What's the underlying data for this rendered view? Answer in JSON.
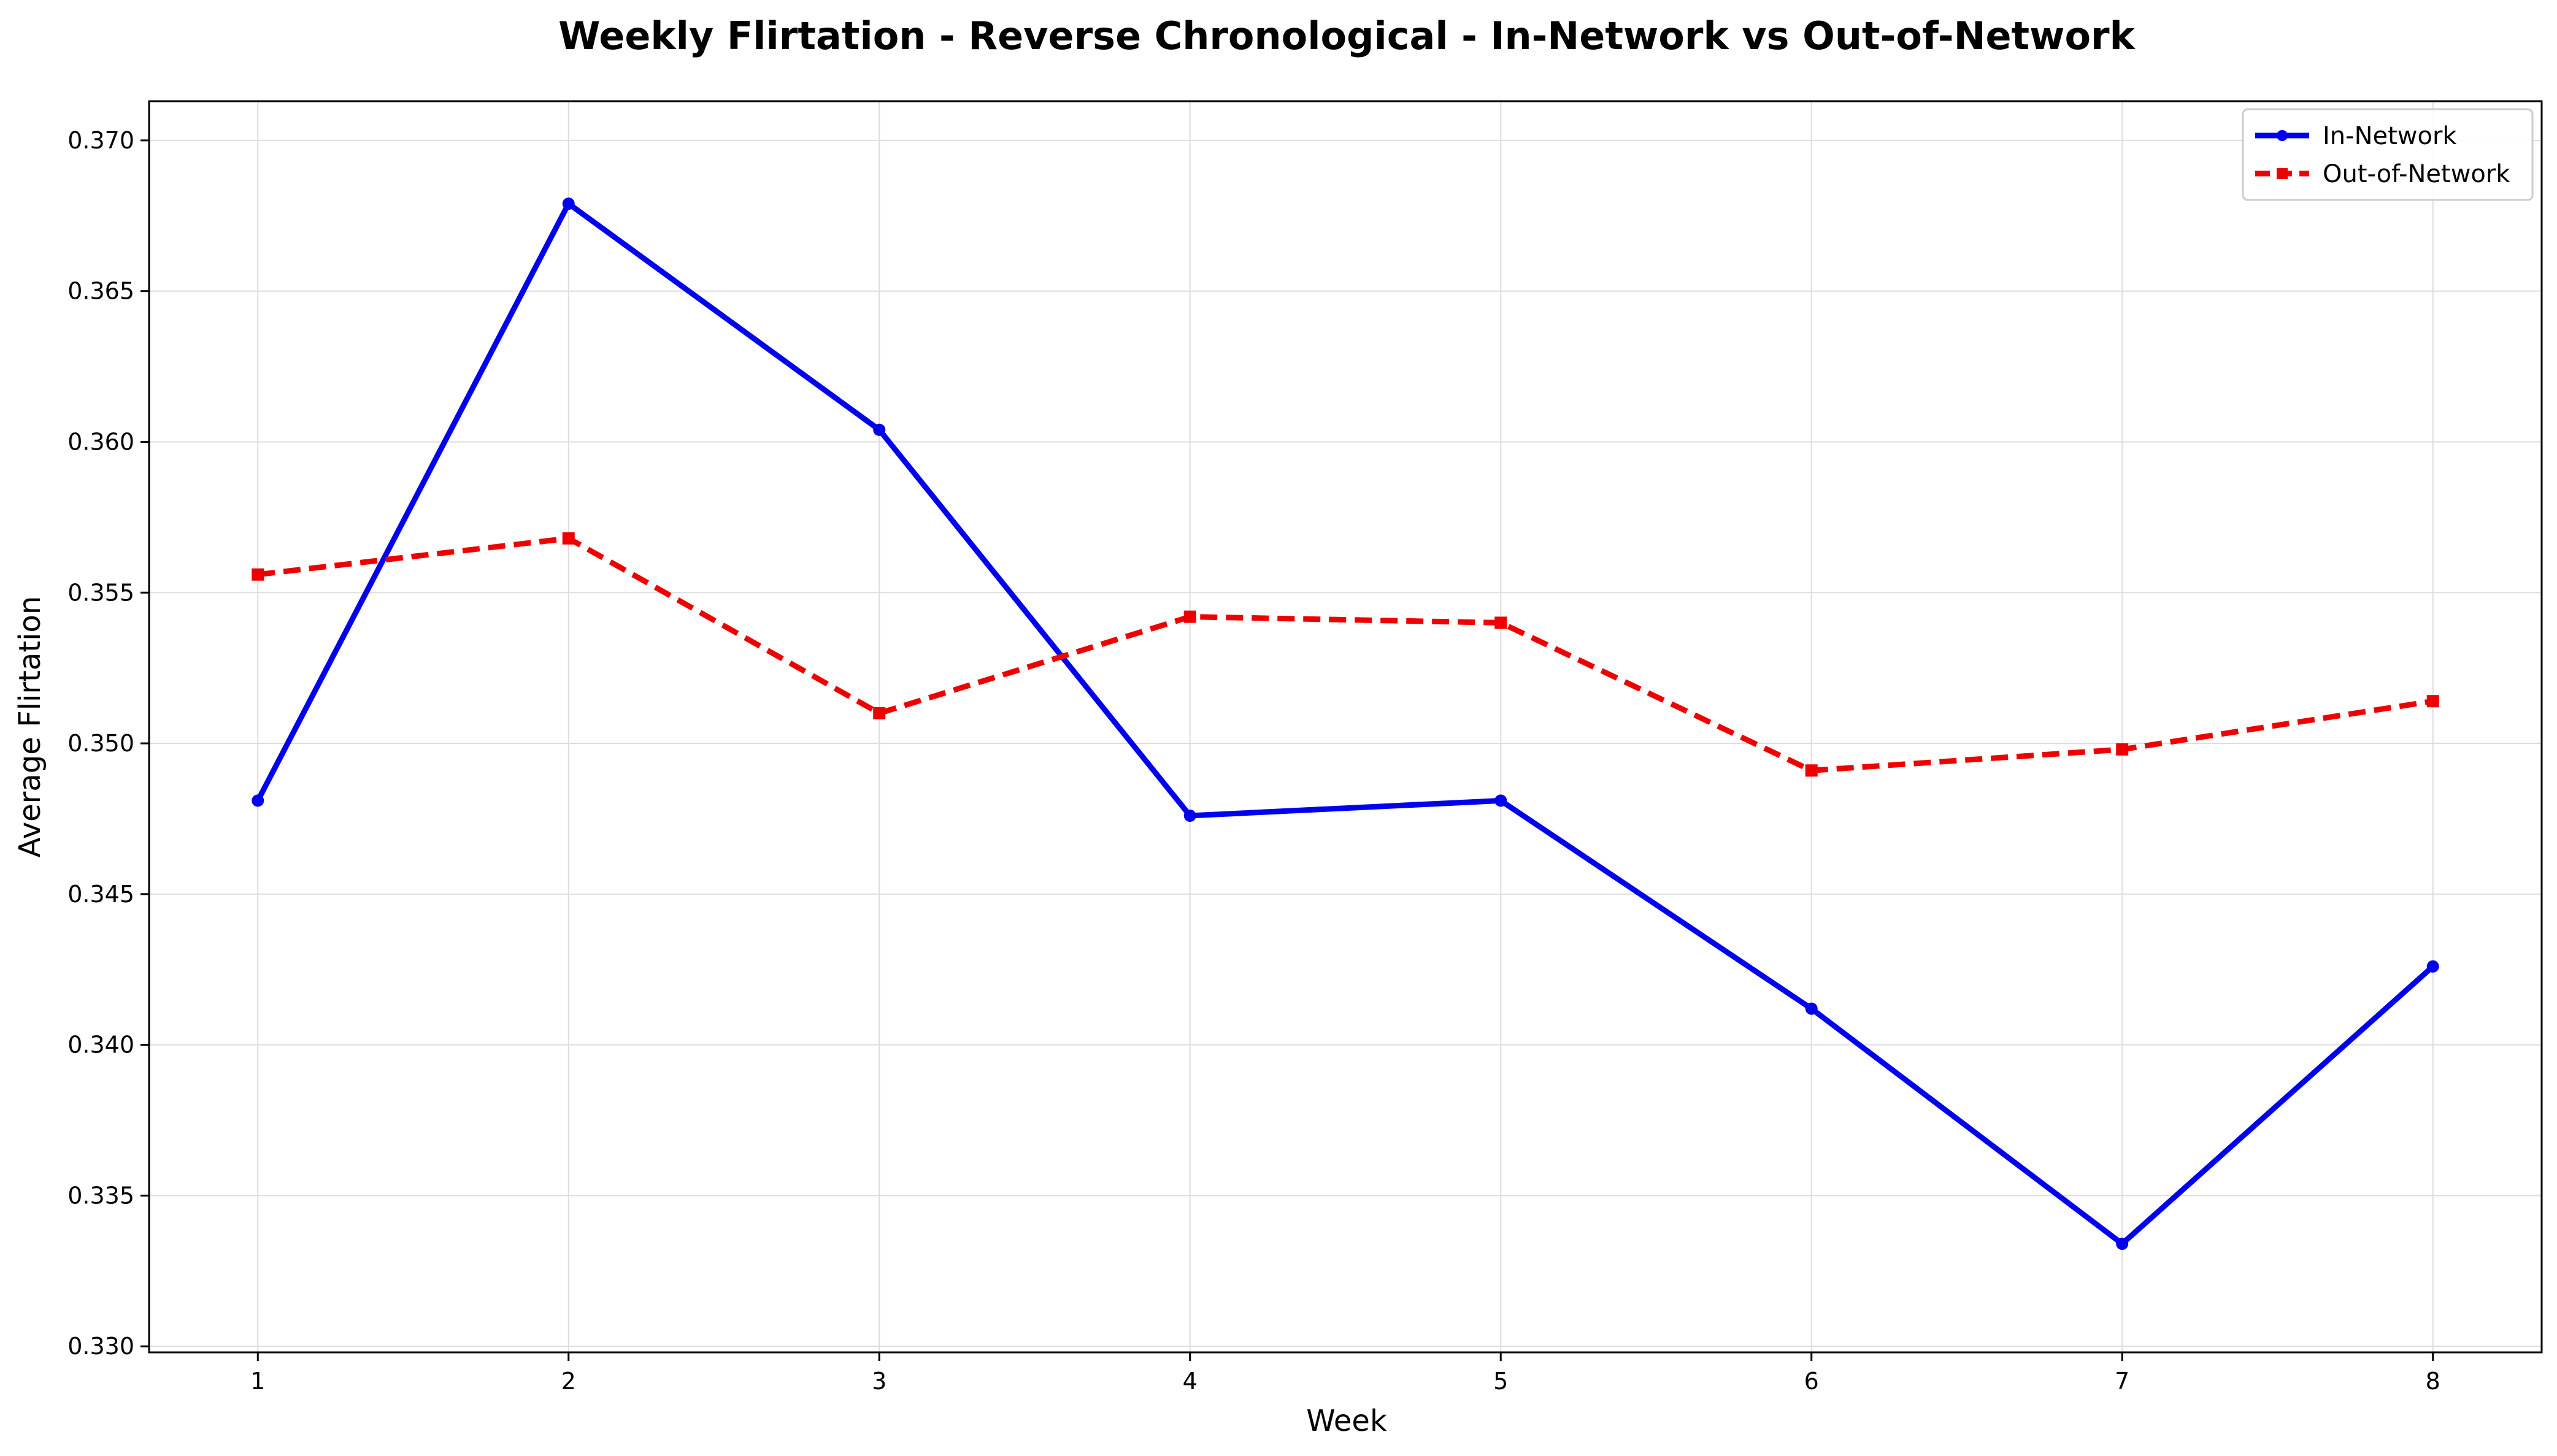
{
  "chart_data": {
    "type": "line",
    "title": "Weekly Flirtation - Reverse Chronological - In-Network vs Out-of-Network",
    "xlabel": "Week",
    "ylabel": "Average Flirtation",
    "x": [
      1,
      2,
      3,
      4,
      5,
      6,
      7,
      8
    ],
    "xlim": [
      0.65,
      8.35
    ],
    "ylim": [
      0.3298,
      0.3713
    ],
    "yticks": [
      "0.330",
      "0.335",
      "0.340",
      "0.345",
      "0.350",
      "0.355",
      "0.360",
      "0.365",
      "0.370"
    ],
    "xticks": [
      "1",
      "2",
      "3",
      "4",
      "5",
      "6",
      "7",
      "8"
    ],
    "grid": true,
    "legend_position": "top-right",
    "series": [
      {
        "name": "In-Network",
        "color": "#0000ee",
        "line_style": "solid",
        "marker": "circle",
        "values": [
          0.3481,
          0.3679,
          0.3604,
          0.3476,
          0.3481,
          0.3412,
          0.3334,
          0.3426
        ]
      },
      {
        "name": "Out-of-Network",
        "color": "#ee0000",
        "line_style": "dashed",
        "marker": "square",
        "values": [
          0.3556,
          0.3568,
          0.351,
          0.3542,
          0.354,
          0.3491,
          0.3498,
          0.3514
        ]
      }
    ]
  }
}
